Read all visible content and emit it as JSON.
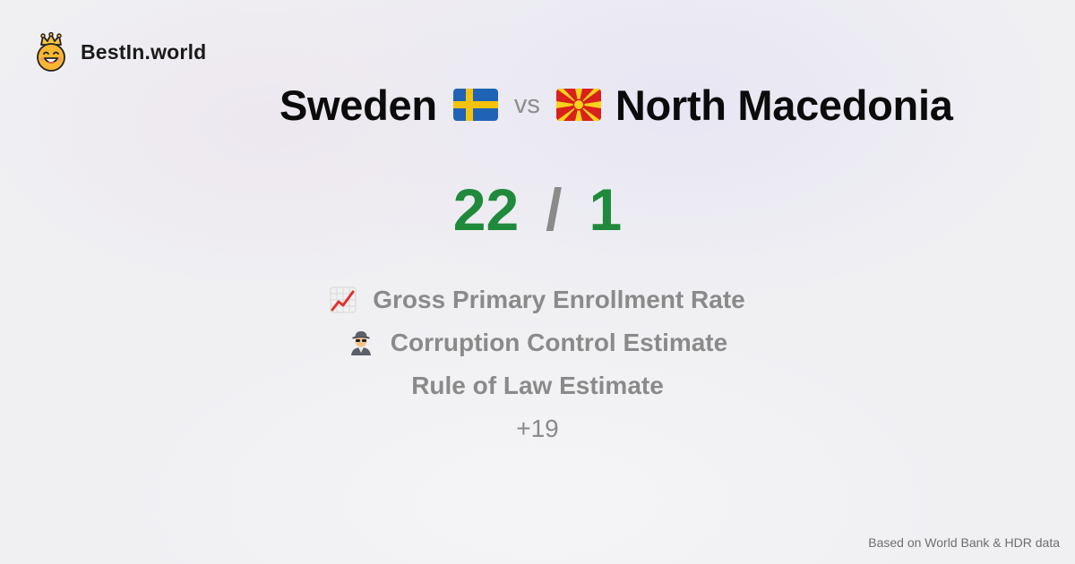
{
  "brand": {
    "name": "BestIn.world",
    "logo_icon": "smiling-crown-face-icon"
  },
  "comparison": {
    "country_a": {
      "name": "Sweden",
      "flag_icon": "sweden-flag-icon"
    },
    "separator": "vs",
    "country_b": {
      "name": "North Macedonia",
      "flag_icon": "north-macedonia-flag-icon"
    }
  },
  "score": {
    "a": "22",
    "separator": "/",
    "b": "1",
    "color": "#1f8a3b"
  },
  "metrics": [
    {
      "label": "Gross Primary Enrollment Rate",
      "icon": "chart-increasing-icon"
    },
    {
      "label": "Corruption Control Estimate",
      "icon": "detective-icon"
    },
    {
      "label": "Rule of Law Estimate",
      "icon": ""
    }
  ],
  "more_count": "+19",
  "footer": {
    "source": "Based on World Bank & HDR data"
  }
}
